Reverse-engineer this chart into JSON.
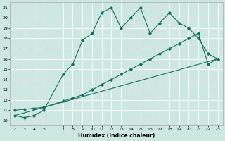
{
  "xlabel": "Humidex (Indice chaleur)",
  "bg_color": "#cce8e0",
  "grid_color": "#ffffff",
  "line_color": "#1a7060",
  "xlim": [
    1.5,
    23.5
  ],
  "ylim": [
    9.5,
    21.5
  ],
  "xticks": [
    2,
    3,
    4,
    5,
    7,
    8,
    9,
    10,
    11,
    12,
    13,
    14,
    15,
    16,
    17,
    18,
    19,
    20,
    21,
    22,
    23
  ],
  "yticks": [
    10,
    11,
    12,
    13,
    14,
    15,
    16,
    17,
    18,
    19,
    20,
    21
  ],
  "line1_x": [
    2,
    3,
    4,
    5,
    7,
    8,
    9,
    10,
    11,
    12,
    13,
    14,
    15,
    16,
    17,
    18,
    19,
    20,
    21,
    22,
    23
  ],
  "line1_y": [
    10.5,
    10.3,
    10.5,
    11.0,
    14.5,
    15.5,
    17.8,
    18.5,
    20.5,
    21.0,
    19.0,
    20.0,
    21.0,
    18.5,
    19.5,
    20.5,
    19.5,
    19.0,
    18.0,
    16.5,
    16.0
  ],
  "line2_x": [
    2,
    3,
    4,
    5,
    7,
    8,
    9,
    10,
    11,
    12,
    13,
    14,
    15,
    16,
    17,
    18,
    19,
    20,
    21,
    22,
    23
  ],
  "line2_y": [
    11.0,
    11.1,
    11.2,
    11.3,
    11.9,
    12.2,
    12.5,
    13.0,
    13.5,
    14.0,
    14.5,
    15.0,
    15.5,
    16.0,
    16.5,
    17.0,
    17.5,
    18.0,
    18.5,
    15.5,
    16.0
  ],
  "line3_x": [
    2,
    23
  ],
  "line3_y": [
    10.5,
    16.0
  ]
}
